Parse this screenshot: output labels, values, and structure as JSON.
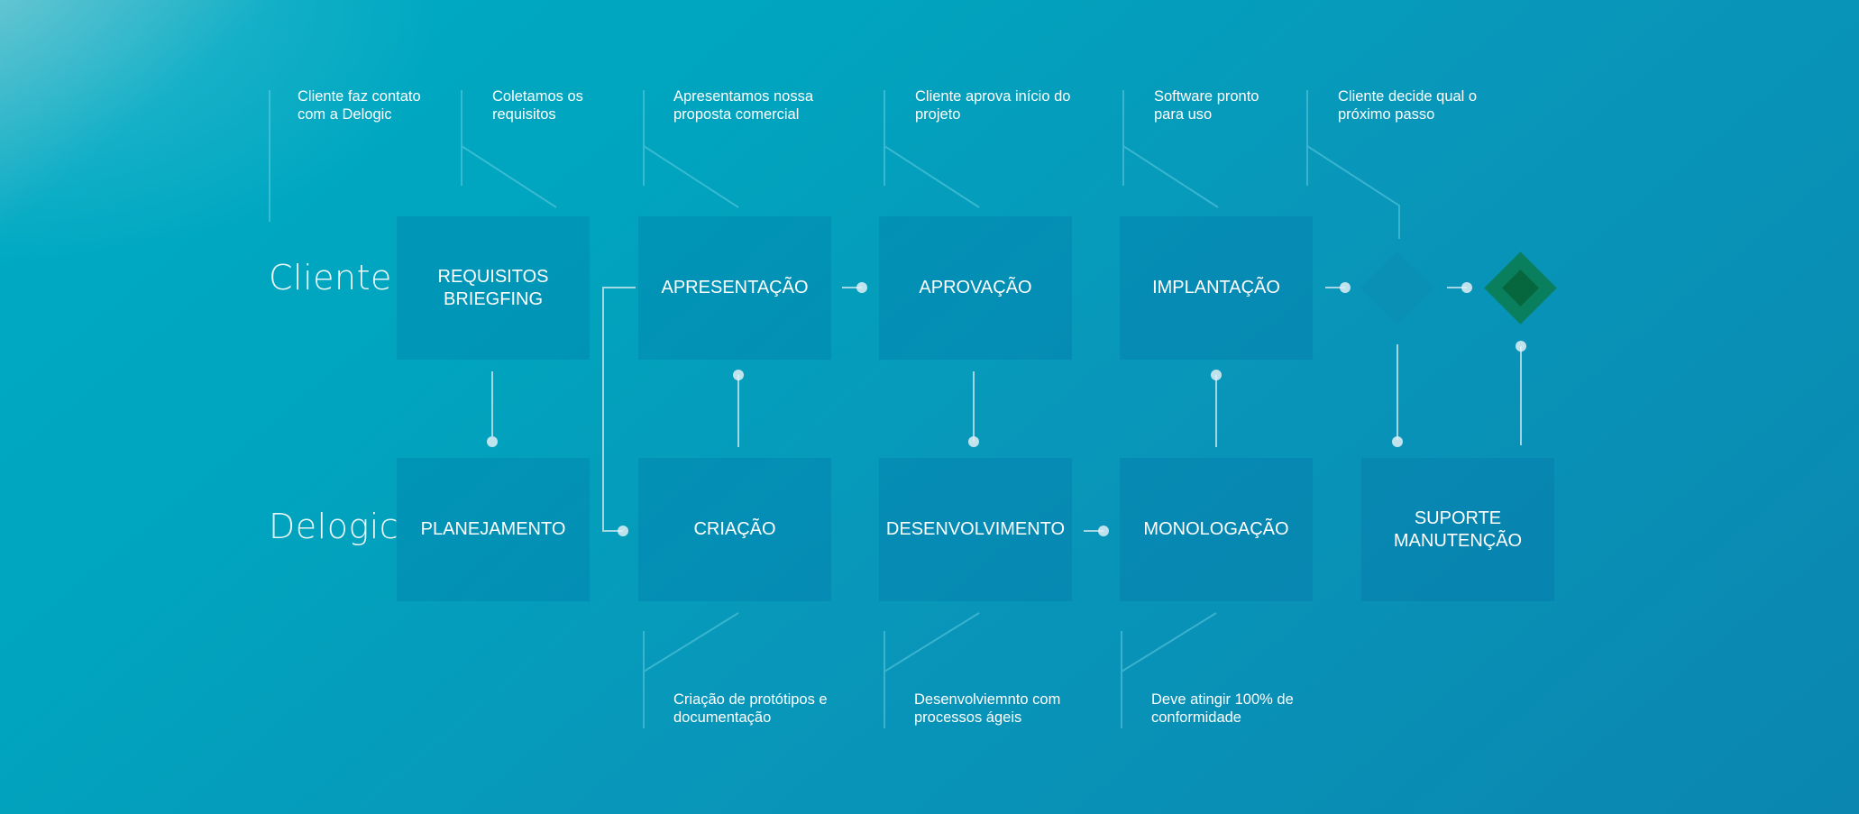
{
  "lanes": {
    "client": "Cliente",
    "company": "Delogic"
  },
  "client_steps": {
    "requisitos": "REQUISITOS\nBRIEGFING",
    "apresentacao": "APRESENTAÇÃO",
    "aprovacao": "APROVAÇÃO",
    "implantacao": "IMPLANTAÇÃO"
  },
  "company_steps": {
    "planejamento": "PLANEJAMENTO",
    "criacao": "CRIAÇÃO",
    "desenvolvimento": "DESENVOLVIMENTO",
    "monologacao": "MONOLOGAÇÃO",
    "suporte": "SUPORTE\nMANUTENÇÃO"
  },
  "top_notes": {
    "contato": "Cliente faz contato\ncom a Delogic",
    "requisitos": "Coletamos os\nrequisitos",
    "proposta": "Apresentamos nossa\nproposta comercial",
    "aprova": "Cliente aprova início do\nprojeto",
    "pronto": "Software pronto\npara uso",
    "decide": "Cliente decide qual o\npróximo passo"
  },
  "bottom_notes": {
    "prototipos": "Criação de protótipos e\ndocumentação",
    "desenvolvimento": "Desenvolviemnto com\nprocessos ágeis",
    "conformidade": "Deve atingir 100% de\nconformidade"
  },
  "colors": {
    "decision_diamond": "#0a8fb5",
    "end_diamond_outer": "#0a7f5e",
    "end_diamond_inner": "#06673f"
  }
}
